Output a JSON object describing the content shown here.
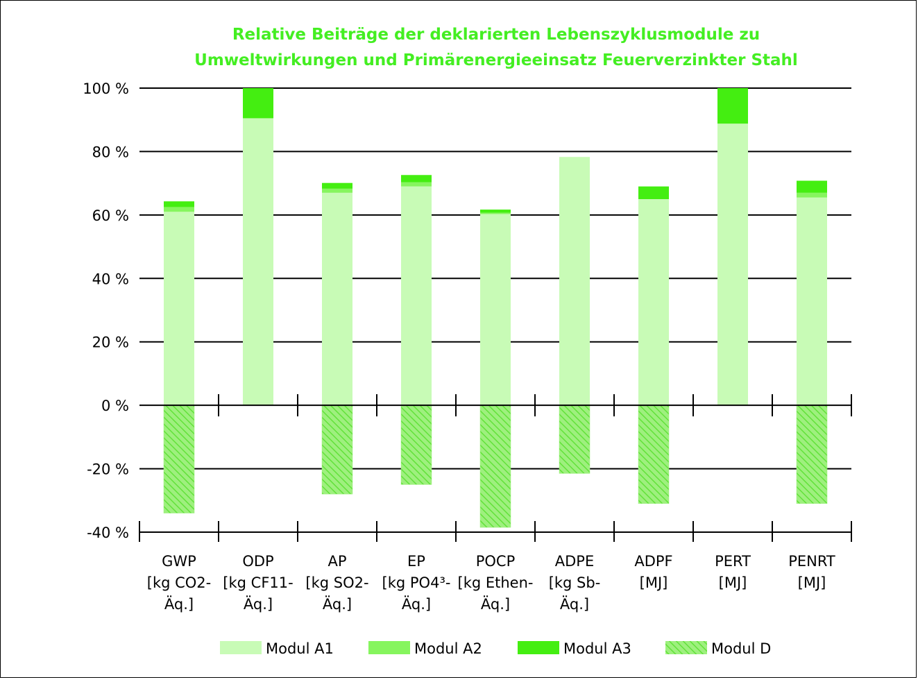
{
  "colors": {
    "title": "#44ee22",
    "modul_a1": "#c8fbb6",
    "modul_a2": "#86f55e",
    "modul_a3": "#44ee11",
    "modul_d": "#9ef07e",
    "modul_d_hatch": "#62e23a",
    "axis": "#000000"
  },
  "chart_data": {
    "type": "bar",
    "stacked": true,
    "title_lines": [
      "Relative Beiträge der deklarierten Lebenszyklusmodule zu",
      "Umweltwirkungen und Primärenergieeinsatz Feuerverzinkter Stahl"
    ],
    "categories": [
      [
        "GWP",
        "[kg CO2-",
        "Äq.]"
      ],
      [
        "ODP",
        "[kg CF11-",
        "Äq.]"
      ],
      [
        "AP",
        "[kg SO2-",
        "Äq.]"
      ],
      [
        "EP",
        "[kg PO4³-",
        "Äq.]"
      ],
      [
        "POCP",
        "[kg Ethen-",
        "Äq.]"
      ],
      [
        "ADPE",
        "[kg Sb-",
        "Äq.]"
      ],
      [
        "ADPF",
        "[MJ]"
      ],
      [
        "PERT",
        "[MJ]"
      ],
      [
        "PENRT",
        "[MJ]"
      ]
    ],
    "series": [
      {
        "name": "Modul A1",
        "values": [
          61,
          90.5,
          67,
          69,
          60.3,
          78.3,
          65,
          88.8,
          65.5
        ]
      },
      {
        "name": "Modul A2",
        "values": [
          1.5,
          0,
          1.3,
          1.3,
          0.4,
          0,
          0,
          0,
          1.5
        ]
      },
      {
        "name": "Modul A3",
        "values": [
          1.8,
          9.5,
          1.8,
          2.3,
          1,
          0,
          4,
          11.2,
          3.8
        ]
      },
      {
        "name": "Modul D",
        "values": [
          -34,
          0,
          -28,
          -25,
          -38.5,
          -21.5,
          -31,
          0,
          -31
        ]
      }
    ],
    "yticks": [
      100,
      80,
      60,
      40,
      20,
      0,
      -20,
      -40
    ],
    "ytick_labels": [
      "100 %",
      "80 %",
      "60 %",
      "40 %",
      "20 %",
      "0 %",
      "-20 %",
      "-40 %"
    ],
    "ylim": [
      -40,
      100
    ],
    "grid": true,
    "legend_position": "bottom"
  }
}
